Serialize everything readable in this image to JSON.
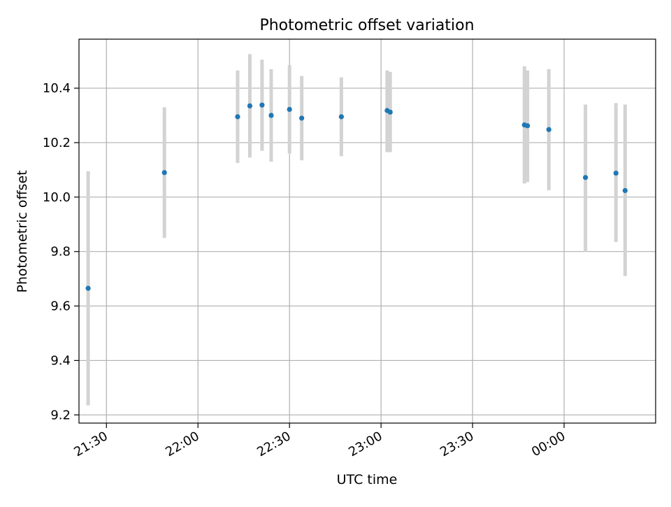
{
  "chart_data": {
    "type": "scatter",
    "title": "Photometric offset variation",
    "xlabel": "UTC time",
    "ylabel": "Photometric offset",
    "xlim": [
      "21:21",
      "00:30"
    ],
    "ylim": [
      9.17,
      10.58
    ],
    "x_ticks": [
      "21:30",
      "22:00",
      "22:30",
      "23:00",
      "23:30",
      "00:00"
    ],
    "y_ticks": [
      "9.2",
      "9.4",
      "9.6",
      "9.8",
      "10.0",
      "10.2",
      "10.4"
    ],
    "grid": true,
    "colors": {
      "point": "#1f77b4",
      "error_bar": "#d3d3d3",
      "grid": "#b0b0b0"
    },
    "series": [
      {
        "points": [
          {
            "x": "21:24",
            "y": 9.665,
            "err_low": 9.235,
            "err_high": 10.095
          },
          {
            "x": "21:49",
            "y": 10.09,
            "err_low": 9.85,
            "err_high": 10.33
          },
          {
            "x": "22:13",
            "y": 10.295,
            "err_low": 10.125,
            "err_high": 10.465
          },
          {
            "x": "22:17",
            "y": 10.335,
            "err_low": 10.145,
            "err_high": 10.525
          },
          {
            "x": "22:21",
            "y": 10.338,
            "err_low": 10.17,
            "err_high": 10.505
          },
          {
            "x": "22:24",
            "y": 10.3,
            "err_low": 10.13,
            "err_high": 10.47
          },
          {
            "x": "22:30",
            "y": 10.322,
            "err_low": 10.16,
            "err_high": 10.485
          },
          {
            "x": "22:34",
            "y": 10.29,
            "err_low": 10.135,
            "err_high": 10.445
          },
          {
            "x": "22:47",
            "y": 10.295,
            "err_low": 10.15,
            "err_high": 10.44
          },
          {
            "x": "23:02",
            "y": 10.318,
            "err_low": 10.165,
            "err_high": 10.465
          },
          {
            "x": "23:03",
            "y": 10.312,
            "err_low": 10.165,
            "err_high": 10.46
          },
          {
            "x": "23:47",
            "y": 10.265,
            "err_low": 10.05,
            "err_high": 10.48
          },
          {
            "x": "23:48",
            "y": 10.262,
            "err_low": 10.055,
            "err_high": 10.465
          },
          {
            "x": "23:55",
            "y": 10.248,
            "err_low": 10.025,
            "err_high": 10.47
          },
          {
            "x": "00:07",
            "y": 10.072,
            "err_low": 9.8,
            "err_high": 10.34
          },
          {
            "x": "00:17",
            "y": 10.088,
            "err_low": 9.835,
            "err_high": 10.345
          },
          {
            "x": "00:20",
            "y": 10.024,
            "err_low": 9.71,
            "err_high": 10.34
          }
        ]
      }
    ]
  }
}
